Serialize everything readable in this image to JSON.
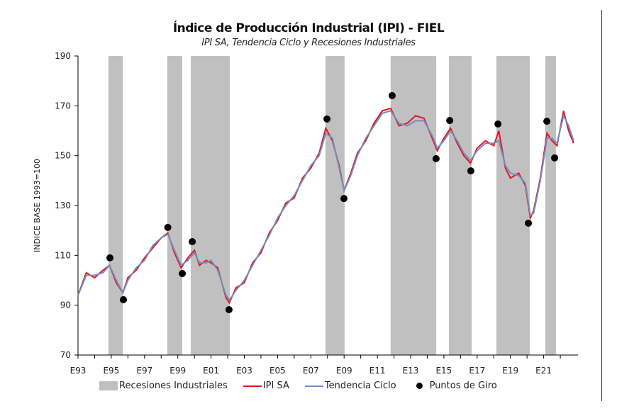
{
  "chart_data": {
    "type": "line",
    "title": "Índice de Producción Industrial (IPI) - FIEL",
    "subtitle": "IPI SA, Tendencia Ciclo y Recesiones Industriales",
    "ylabel": "INDICE BASE 1993=100",
    "xlabel": "",
    "ylim": [
      70,
      190
    ],
    "yticks": [
      70,
      90,
      110,
      130,
      150,
      170,
      190
    ],
    "xlim": [
      1993,
      2022.9
    ],
    "xtick_labels": [
      "E93",
      "E95",
      "E97",
      "E99",
      "E01",
      "E03",
      "E05",
      "E07",
      "E09",
      "E11",
      "E13",
      "E15",
      "E17",
      "E19",
      "E21"
    ],
    "xtick_years": [
      1993,
      1995,
      1997,
      1999,
      2001,
      2003,
      2005,
      2007,
      2009,
      2011,
      2013,
      2015,
      2017,
      2019,
      2021
    ],
    "grid": false,
    "legend_position": "bottom",
    "colors": {
      "recession": "#c0c0c0",
      "ipi": "#e8141c",
      "trend": "#6f8fbf",
      "points": "#000000"
    },
    "recessions": {
      "name": "Recesiones Industriales",
      "periods": [
        [
          1994.83,
          1995.69
        ],
        [
          1998.37,
          1999.27
        ],
        [
          1999.78,
          2002.13
        ],
        [
          2007.88,
          2009.03
        ],
        [
          2011.8,
          2014.54
        ],
        [
          2015.3,
          2016.67
        ],
        [
          2018.16,
          2020.16
        ],
        [
          2021.1,
          2021.74
        ]
      ]
    },
    "x": [
      1993.0,
      1993.5,
      1994.0,
      1994.5,
      1994.9,
      1995.3,
      1995.7,
      1996.0,
      1996.5,
      1997.0,
      1997.5,
      1998.0,
      1998.4,
      1998.8,
      1999.2,
      1999.6,
      2000.0,
      2000.3,
      2000.7,
      2001.0,
      2001.4,
      2001.9,
      2002.1,
      2002.5,
      2003.0,
      2003.5,
      2004.0,
      2004.5,
      2005.0,
      2005.5,
      2006.0,
      2006.5,
      2007.0,
      2007.5,
      2007.9,
      2008.3,
      2008.7,
      2009.0,
      2009.4,
      2009.8,
      2010.3,
      2010.8,
      2011.3,
      2011.8,
      2012.3,
      2012.8,
      2013.3,
      2013.8,
      2014.3,
      2014.6,
      2015.0,
      2015.4,
      2015.8,
      2016.2,
      2016.6,
      2017.0,
      2017.5,
      2018.0,
      2018.3,
      2018.7,
      2019.0,
      2019.5,
      2019.9,
      2020.2,
      2020.4,
      2020.8,
      2021.2,
      2021.5,
      2021.8,
      2022.2,
      2022.5,
      2022.8
    ],
    "series": [
      {
        "name": "IPI SA",
        "values": [
          94,
          103,
          101,
          104,
          106,
          99,
          95,
          101,
          104,
          109,
          113,
          117,
          119,
          111,
          105,
          109,
          112,
          106,
          108,
          107,
          105,
          93,
          91,
          97,
          99,
          107,
          111,
          119,
          124,
          131,
          133,
          141,
          145,
          151,
          161,
          156,
          146,
          136,
          143,
          151,
          156,
          163,
          168,
          169,
          162,
          163,
          166,
          165,
          157,
          152,
          157,
          161,
          155,
          150,
          147,
          153,
          156,
          154,
          160,
          145,
          141,
          143,
          138,
          125,
          128,
          141,
          159,
          156,
          154,
          168,
          160,
          155
        ]
      },
      {
        "name": "Tendencia Ciclo",
        "values": [
          94,
          102,
          102,
          103,
          106,
          100,
          95,
          100,
          105,
          108,
          114,
          117,
          118.5,
          112,
          106,
          108,
          111,
          107,
          107,
          108,
          104,
          94,
          92,
          96,
          100,
          106,
          112,
          118,
          125,
          130,
          134,
          140,
          146,
          150,
          159,
          157,
          145,
          136,
          142,
          150,
          157,
          162,
          167,
          168,
          163,
          162,
          164,
          164,
          158,
          153,
          156,
          160,
          156,
          151,
          148,
          152,
          155,
          155,
          156,
          146,
          143,
          142,
          139,
          126,
          127,
          140,
          157,
          157,
          155,
          166,
          162,
          156
        ]
      }
    ],
    "turning_points": {
      "name": "Puntos de Giro",
      "points": [
        [
          1994.92,
          109
        ],
        [
          1995.73,
          92.2
        ],
        [
          1998.4,
          121.2
        ],
        [
          1999.27,
          102.7
        ],
        [
          1999.87,
          115.5
        ],
        [
          2002.08,
          88.2
        ],
        [
          2007.97,
          164.7
        ],
        [
          2008.99,
          132.8
        ],
        [
          2011.89,
          174.1
        ],
        [
          2014.53,
          148.8
        ],
        [
          2015.35,
          164.1
        ],
        [
          2016.62,
          143.9
        ],
        [
          2018.25,
          162.7
        ],
        [
          2020.08,
          122.9
        ],
        [
          2021.19,
          163.8
        ],
        [
          2021.66,
          149.1
        ]
      ]
    }
  }
}
